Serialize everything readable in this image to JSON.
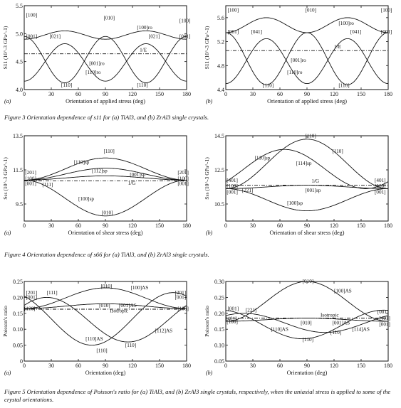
{
  "captions": {
    "fig3": "Figure 3  Orientation dependence of s11 for (a) TiAl3, and (b) ZrAl3 single crystals.",
    "fig4": "Figure 4  Orientation dependence of s66 for (a) TiAl3, and (b) ZrAl3 single crystals.",
    "fig5": "Figure 5  Orientation dependence of Poisson's ratio for (a) TiAl3, and (b) ZrAl3 single crystals, respectively, when the uniaxial stress is applied to some of the crystal orientations."
  },
  "chart_data": [
    {
      "id": "f3a",
      "type": "line",
      "panel_label": "(a)",
      "xlabel": "Orientation of applied stress (deg)",
      "ylabel": "S11 (10^-3 GPa^-1)",
      "xlim": [
        0,
        180
      ],
      "ylim": [
        4.0,
        5.5
      ],
      "xticks": [
        0,
        30,
        60,
        90,
        120,
        150,
        180
      ],
      "yticks": [
        {
          "v": 4.0,
          "t": "4.0"
        },
        {
          "v": 4.5,
          "t": "4.5"
        },
        {
          "v": 5.0,
          "t": "5.0"
        },
        {
          "v": 5.5,
          "t": "5.5"
        }
      ],
      "series": [
        {
          "name": "[100]ro",
          "style": "solid",
          "shape": "up",
          "a": 4.9,
          "b": 5.05,
          "p": 90,
          "phase": 0
        },
        {
          "name": "[001]ro",
          "style": "solid",
          "shape": "down",
          "a": 4.82,
          "b": 4.15,
          "p": 90,
          "phase": 45
        },
        {
          "name": "[110]ro",
          "style": "solid",
          "shape": "down",
          "a": 4.95,
          "b": 4.12,
          "p": 90,
          "phase": 0
        },
        {
          "name": "1/E",
          "style": "dashdot",
          "shape": "flat",
          "a": 4.64,
          "b": 4.64,
          "p": 180,
          "phase": 0
        }
      ],
      "labels": [
        {
          "t": "[100]",
          "x": 2,
          "y": 5.3
        },
        {
          "t": "[001]",
          "x": 2,
          "y": 4.92
        },
        {
          "t": "[021]",
          "x": 28,
          "y": 4.92
        },
        {
          "t": "[010]",
          "x": 88,
          "y": 5.25
        },
        {
          "t": "[100]ro",
          "x": 125,
          "y": 5.08
        },
        {
          "t": "[021]",
          "x": 138,
          "y": 4.92
        },
        {
          "t": "[100]",
          "x": 172,
          "y": 5.2
        },
        {
          "t": "[001]",
          "x": 172,
          "y": 4.92
        },
        {
          "t": "1/E",
          "x": 128,
          "y": 4.68
        },
        {
          "t": "[001]ro",
          "x": 72,
          "y": 4.44
        },
        {
          "t": "[110]ro",
          "x": 68,
          "y": 4.28
        },
        {
          "t": "[110]",
          "x": 41,
          "y": 4.05
        },
        {
          "t": "[110]",
          "x": 125,
          "y": 4.05
        }
      ]
    },
    {
      "id": "f3b",
      "type": "line",
      "panel_label": "(b)",
      "xlabel": "Orientation of applied stress (deg)",
      "ylabel": "S11 (10^-3 GPa^-1)",
      "xlim": [
        0,
        180
      ],
      "ylim": [
        4.4,
        5.8
      ],
      "xticks": [
        0,
        30,
        60,
        90,
        120,
        150,
        180
      ],
      "yticks": [
        {
          "v": 4.4,
          "t": "4.4"
        },
        {
          "v": 4.8,
          "t": "4.8"
        },
        {
          "v": 5.2,
          "t": "5.2"
        },
        {
          "v": 5.6,
          "t": "5.6"
        }
      ],
      "series": [
        {
          "name": "[100]ro",
          "style": "solid",
          "shape": "up",
          "a": 5.35,
          "b": 5.6,
          "p": 90,
          "phase": 0
        },
        {
          "name": "[001]ro",
          "style": "solid",
          "shape": "down",
          "a": 5.25,
          "b": 4.5,
          "p": 90,
          "phase": 45
        },
        {
          "name": "[110]ro",
          "style": "solid",
          "shape": "down",
          "a": 5.35,
          "b": 4.48,
          "p": 90,
          "phase": 0
        },
        {
          "name": "1/E",
          "style": "dashdot",
          "shape": "flat",
          "a": 5.05,
          "b": 5.05,
          "p": 180,
          "phase": 0
        }
      ],
      "labels": [
        {
          "t": "[100]",
          "x": 2,
          "y": 5.7
        },
        {
          "t": "[001]",
          "x": 2,
          "y": 5.34
        },
        {
          "t": "[041]",
          "x": 28,
          "y": 5.34
        },
        {
          "t": "[010]",
          "x": 88,
          "y": 5.7
        },
        {
          "t": "[100]ro",
          "x": 125,
          "y": 5.48
        },
        {
          "t": "[041]",
          "x": 138,
          "y": 5.34
        },
        {
          "t": "[100]",
          "x": 172,
          "y": 5.7
        },
        {
          "t": "[001]",
          "x": 172,
          "y": 5.34
        },
        {
          "t": "1/E",
          "x": 120,
          "y": 5.09
        },
        {
          "t": "[001]ro",
          "x": 72,
          "y": 4.86
        },
        {
          "t": "[110]ro",
          "x": 68,
          "y": 4.66
        },
        {
          "t": "[110]",
          "x": 41,
          "y": 4.44
        },
        {
          "t": "[110]",
          "x": 125,
          "y": 4.44
        }
      ]
    },
    {
      "id": "f4a",
      "type": "line",
      "panel_label": "(a)",
      "xlabel": "Orientation of shear stress (deg)",
      "ylabel": "Sss (10^-3 GPa^-1)",
      "xlim": [
        0,
        180
      ],
      "ylim": [
        8.5,
        13.5
      ],
      "xticks": [
        0,
        30,
        60,
        90,
        120,
        150,
        180
      ],
      "yticks": [
        {
          "v": 9.5,
          "t": "9.5"
        },
        {
          "v": 11.5,
          "t": "11.5"
        },
        {
          "v": 13.5,
          "t": "13.5"
        }
      ],
      "series": [
        {
          "name": "[110]sp",
          "style": "solid",
          "shape": "up",
          "a": 10.9,
          "b": 12.2,
          "p": 180,
          "phase": 0
        },
        {
          "name": "[112]sp",
          "style": "solid",
          "shape": "up",
          "a": 10.9,
          "b": 11.6,
          "p": 180,
          "phase": 0
        },
        {
          "name": "[001]sp",
          "style": "solid",
          "shape": "up",
          "a": 10.9,
          "b": 11.15,
          "p": 180,
          "phase": 0
        },
        {
          "name": "[100]sp",
          "style": "solid",
          "shape": "down",
          "a": 10.9,
          "b": 8.8,
          "p": 180,
          "phase": 0
        },
        {
          "name": "1/G",
          "style": "dashdot",
          "shape": "flat",
          "a": 10.85,
          "b": 10.85,
          "p": 180,
          "phase": 0
        }
      ],
      "labels": [
        {
          "t": "[110]",
          "x": 88,
          "y": 12.5
        },
        {
          "t": "[110]sp",
          "x": 55,
          "y": 11.85
        },
        {
          "t": "[112]sp",
          "x": 75,
          "y": 11.35
        },
        {
          "t": "[001]sp",
          "x": 117,
          "y": 11.12
        },
        {
          "t": "[201]",
          "x": 1,
          "y": 11.25
        },
        {
          "t": "[100]",
          "x": 1,
          "y": 10.9
        },
        {
          "t": "[001]",
          "x": 1,
          "y": 10.6
        },
        {
          "t": "[111]",
          "x": 20,
          "y": 10.55
        },
        {
          "t": "1/G",
          "x": 115,
          "y": 10.62
        },
        {
          "t": "[201]",
          "x": 170,
          "y": 11.25
        },
        {
          "t": "[100]",
          "x": 170,
          "y": 10.9
        },
        {
          "t": "[001]",
          "x": 170,
          "y": 10.6
        },
        {
          "t": "[100]sp",
          "x": 60,
          "y": 9.7
        },
        {
          "t": "[010]",
          "x": 86,
          "y": 8.9
        }
      ]
    },
    {
      "id": "f4b",
      "type": "line",
      "panel_label": "(b)",
      "xlabel": "Orientation of shear stress (deg)",
      "ylabel": "Sss (10^-3 GPa^-1)",
      "xlim": [
        0,
        180
      ],
      "ylim": [
        9.5,
        14.5
      ],
      "xticks": [
        0,
        30,
        60,
        90,
        120,
        150,
        180
      ],
      "yticks": [
        {
          "v": 10.5,
          "t": "10.5"
        },
        {
          "v": 12.5,
          "t": "12.5"
        },
        {
          "v": 14.5,
          "t": "14.5"
        }
      ],
      "series": [
        {
          "name": "[110]sp",
          "style": "solid",
          "shape": "up",
          "a": 11.4,
          "b": 14.3,
          "p": 180,
          "phase": 0
        },
        {
          "name": "[114]sp",
          "style": "solid",
          "shape": "up",
          "a": 11.4,
          "b": 13.7,
          "p": 180,
          "phase": -25
        },
        {
          "name": "[001]sp",
          "style": "solid",
          "shape": "up",
          "a": 11.4,
          "b": 11.6,
          "p": 180,
          "phase": 0
        },
        {
          "name": "[100]sp",
          "style": "solid",
          "shape": "down",
          "a": 11.4,
          "b": 10.1,
          "p": 180,
          "phase": 0
        },
        {
          "name": "1/G",
          "style": "dashdot",
          "shape": "flat",
          "a": 11.6,
          "b": 11.6,
          "p": 180,
          "phase": 0
        }
      ],
      "labels": [
        {
          "t": "[110]",
          "x": 88,
          "y": 14.4
        },
        {
          "t": "[110]sp",
          "x": 32,
          "y": 13.1
        },
        {
          "t": "[114]sp",
          "x": 78,
          "y": 12.8
        },
        {
          "t": "[110]",
          "x": 118,
          "y": 13.5
        },
        {
          "t": "[401]",
          "x": 1,
          "y": 11.8
        },
        {
          "t": "[100]",
          "x": 1,
          "y": 11.45
        },
        {
          "t": "[001]",
          "x": 1,
          "y": 11.1
        },
        {
          "t": "[221]",
          "x": 18,
          "y": 11.2
        },
        {
          "t": "1/G",
          "x": 95,
          "y": 11.75
        },
        {
          "t": "[001]sp",
          "x": 88,
          "y": 11.2
        },
        {
          "t": "[401]",
          "x": 165,
          "y": 11.8
        },
        {
          "t": "[100]",
          "x": 165,
          "y": 11.45
        },
        {
          "t": "[001]",
          "x": 165,
          "y": 11.1
        },
        {
          "t": "[100]sp",
          "x": 68,
          "y": 10.45
        }
      ]
    },
    {
      "id": "f5a",
      "type": "line",
      "panel_label": "(a)",
      "xlabel": "Orientation (deg)",
      "ylabel": "Poisson's ratio",
      "xlim": [
        0,
        180
      ],
      "ylim": [
        0.0,
        0.25
      ],
      "xticks": [
        0,
        30,
        60,
        90,
        120,
        150,
        180
      ],
      "yticks": [
        {
          "v": 0.0,
          "t": "0"
        },
        {
          "v": 0.05,
          "t": "0.05"
        },
        {
          "v": 0.1,
          "t": "0.10"
        },
        {
          "v": 0.15,
          "t": "0.15"
        },
        {
          "v": 0.2,
          "t": "0.20"
        },
        {
          "v": 0.25,
          "t": "0.25"
        }
      ],
      "series": [
        {
          "name": "[100]AS",
          "style": "solid",
          "shape": "up",
          "a": 0.165,
          "b": 0.23,
          "p": 180,
          "phase": 0
        },
        {
          "name": "[001]AS",
          "style": "solid",
          "shape": "up",
          "a": 0.165,
          "b": 0.18,
          "p": 180,
          "phase": 0
        },
        {
          "name": "[110]AS",
          "style": "solid",
          "shape": "down",
          "a": 0.215,
          "b": 0.05,
          "p": 180,
          "phase": -15
        },
        {
          "name": "[112]AS",
          "style": "solid",
          "shape": "down",
          "a": 0.2,
          "b": 0.06,
          "p": 180,
          "phase": 25
        },
        {
          "name": "Isotropic",
          "style": "dashdot",
          "shape": "flat",
          "a": 0.163,
          "b": 0.163,
          "p": 180,
          "phase": 0
        }
      ],
      "labels": [
        {
          "t": "[201]",
          "x": 2,
          "y": 0.21
        },
        {
          "t": "[001]",
          "x": 2,
          "y": 0.195
        },
        {
          "t": "[100]",
          "x": 0,
          "y": 0.16
        },
        {
          "t": "[111]",
          "x": 25,
          "y": 0.21
        },
        {
          "t": "[010]",
          "x": 85,
          "y": 0.23
        },
        {
          "t": "[100]AS",
          "x": 118,
          "y": 0.225
        },
        {
          "t": "[001]AS",
          "x": 105,
          "y": 0.17
        },
        {
          "t": "[010]",
          "x": 83,
          "y": 0.17
        },
        {
          "t": "Isotropic",
          "x": 95,
          "y": 0.153
        },
        {
          "t": "[201]",
          "x": 167,
          "y": 0.21
        },
        {
          "t": "[001]",
          "x": 167,
          "y": 0.195
        },
        {
          "t": "[100]",
          "x": 170,
          "y": 0.16
        },
        {
          "t": "[112]AS",
          "x": 145,
          "y": 0.09
        },
        {
          "t": "[110]AS",
          "x": 68,
          "y": 0.065
        },
        {
          "t": "[110]",
          "x": 112,
          "y": 0.045
        },
        {
          "t": "[110]",
          "x": 80,
          "y": 0.028
        }
      ]
    },
    {
      "id": "f5b",
      "type": "line",
      "panel_label": "(b)",
      "xlabel": "Orientation (deg)",
      "ylabel": "Poisson's ratio",
      "xlim": [
        0,
        180
      ],
      "ylim": [
        0.05,
        0.3
      ],
      "xticks": [
        0,
        30,
        60,
        90,
        120,
        150,
        180
      ],
      "yticks": [
        {
          "v": 0.05,
          "t": "0.05"
        },
        {
          "v": 0.1,
          "t": "0.10"
        },
        {
          "v": 0.15,
          "t": "0.15"
        },
        {
          "v": 0.2,
          "t": "0.20"
        },
        {
          "v": 0.25,
          "t": "0.25"
        },
        {
          "v": 0.3,
          "t": "0.30"
        }
      ],
      "series": [
        {
          "name": "[100]AS",
          "style": "solid",
          "shape": "up",
          "a": 0.175,
          "b": 0.3,
          "p": 180,
          "phase": 0
        },
        {
          "name": "[001]AS",
          "style": "solid",
          "shape": "up",
          "a": 0.175,
          "b": 0.185,
          "p": 180,
          "phase": 0
        },
        {
          "name": "[110]AS",
          "style": "solid",
          "shape": "down",
          "a": 0.21,
          "b": 0.12,
          "p": 180,
          "phase": -5
        },
        {
          "name": "[114]AS",
          "style": "solid",
          "shape": "down",
          "a": 0.2,
          "b": 0.14,
          "p": 180,
          "phase": 20
        },
        {
          "name": "Isotropic",
          "style": "dashdot",
          "shape": "flat",
          "a": 0.185,
          "b": 0.185,
          "p": 180,
          "phase": 0
        }
      ],
      "labels": [
        {
          "t": "[001]",
          "x": 2,
          "y": 0.21
        },
        {
          "t": "[401]",
          "x": 0,
          "y": 0.178
        },
        {
          "t": "[100]",
          "x": 1,
          "y": 0.168
        },
        {
          "t": "[221]",
          "x": 22,
          "y": 0.205
        },
        {
          "t": "[010]",
          "x": 85,
          "y": 0.295
        },
        {
          "t": "[100]AS",
          "x": 120,
          "y": 0.265
        },
        {
          "t": "Isotropic",
          "x": 105,
          "y": 0.19
        },
        {
          "t": "[010]",
          "x": 83,
          "y": 0.165
        },
        {
          "t": "[001]AS",
          "x": 118,
          "y": 0.165
        },
        {
          "t": "[110]AS",
          "x": 50,
          "y": 0.145
        },
        {
          "t": "[114]AS",
          "x": 140,
          "y": 0.145
        },
        {
          "t": "[110]",
          "x": 116,
          "y": 0.135
        },
        {
          "t": "[110]",
          "x": 85,
          "y": 0.113
        },
        {
          "t": "[001]",
          "x": 168,
          "y": 0.2
        },
        {
          "t": "[401]",
          "x": 170,
          "y": 0.18
        },
        {
          "t": "[001]",
          "x": 170,
          "y": 0.16
        }
      ]
    }
  ]
}
